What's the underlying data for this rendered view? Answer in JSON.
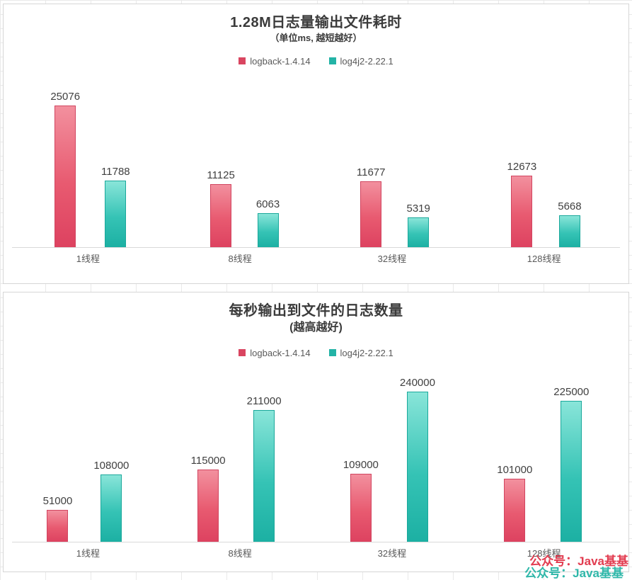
{
  "watermark": {
    "text": "公众号：Java基基",
    "red_color": "#e23c50",
    "teal_color": "#2fb7a9"
  },
  "chart_data": [
    {
      "type": "bar",
      "title": "1.28M日志量输出文件耗时",
      "subtitle": "（单位ms, 越短越好）",
      "categories": [
        "1线程",
        "8线程",
        "32线程",
        "128线程"
      ],
      "series": [
        {
          "name": "logback-1.4.14",
          "color": "#d94560",
          "values": [
            25076,
            11125,
            11677,
            12673
          ]
        },
        {
          "name": "log4j2-2.22.1",
          "color": "#23b3a6",
          "values": [
            11788,
            6063,
            5319,
            5668
          ]
        }
      ],
      "xlabel": "",
      "ylabel": "",
      "ylim": [
        0,
        26000
      ],
      "grid": false,
      "legend_position": "top"
    },
    {
      "type": "bar",
      "title": "每秒输出到文件的日志数量",
      "subtitle": "(越高越好)",
      "categories": [
        "1线程",
        "8线程",
        "32线程",
        "128线程"
      ],
      "series": [
        {
          "name": "logback-1.4.14",
          "color": "#d94560",
          "values": [
            51000,
            115000,
            109000,
            101000
          ]
        },
        {
          "name": "log4j2-2.22.1",
          "color": "#23b3a6",
          "values": [
            108000,
            211000,
            240000,
            225000
          ]
        }
      ],
      "xlabel": "",
      "ylabel": "",
      "ylim": [
        0,
        250000
      ],
      "grid": false,
      "legend_position": "top"
    }
  ]
}
